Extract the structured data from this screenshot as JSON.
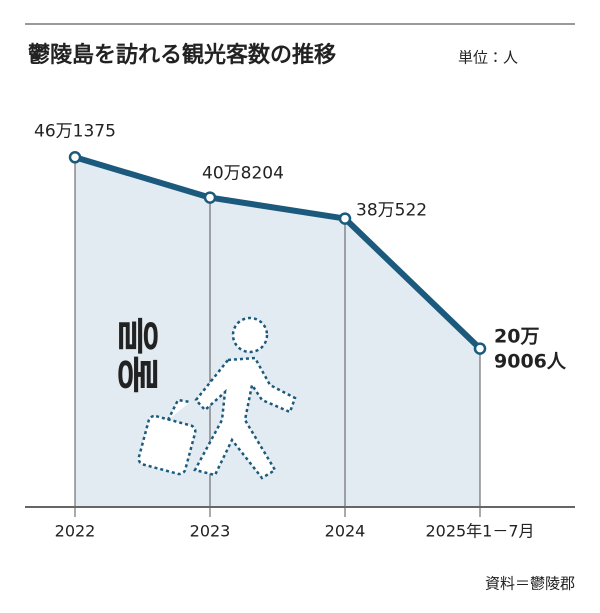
{
  "chart_data": {
    "type": "area-line",
    "title": "鬱陵島を訪れる観光客数の推移",
    "unit": "単位：人",
    "source": "資料＝鬱陵郡",
    "watermark": "울릉",
    "categories": [
      "2022",
      "2023",
      "2024",
      "2025年1－7月"
    ],
    "values": [
      461375,
      408204,
      380522,
      209006
    ],
    "value_labels": [
      "46万1375",
      "40万8204",
      "38万522",
      "20万\n9006人"
    ],
    "color": "#1b5a7c",
    "area_color": "#e2ebf2",
    "ylim": [
      0,
      500000
    ]
  }
}
